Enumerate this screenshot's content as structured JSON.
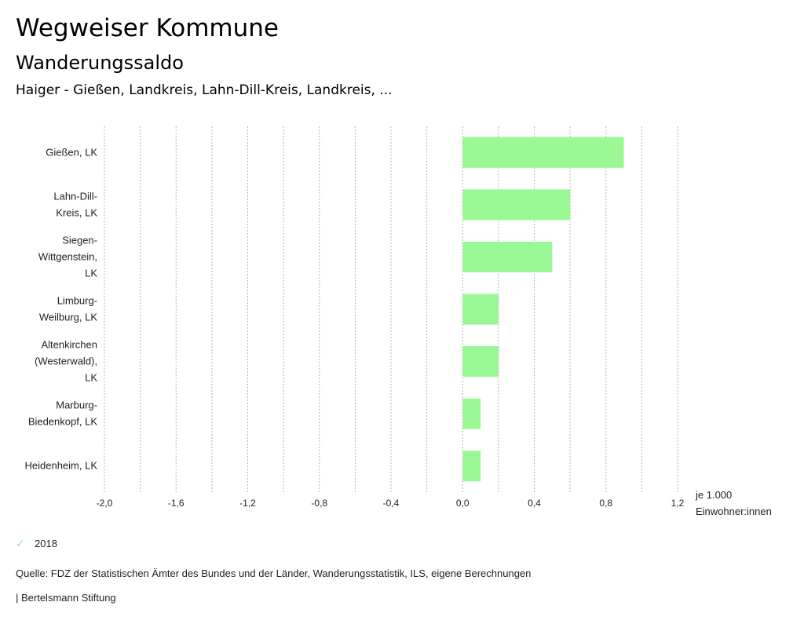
{
  "header": {
    "title": "Wegweiser Kommune",
    "subtitle": "Wanderungssaldo",
    "regions": "Haiger - Gießen, Landkreis, Lahn-Dill-Kreis, Landkreis, ..."
  },
  "chart_data": {
    "type": "bar",
    "orientation": "horizontal",
    "categories": [
      [
        "Gießen, LK"
      ],
      [
        "Lahn-Dill-",
        "Kreis, LK"
      ],
      [
        "Siegen-",
        "Wittgenstein,",
        "LK"
      ],
      [
        "Limburg-",
        "Weilburg, LK"
      ],
      [
        "Altenkirchen",
        "(Westerwald),",
        "LK"
      ],
      [
        "Marburg-",
        "Biedenkopf, LK"
      ],
      [
        "Heidenheim, LK"
      ]
    ],
    "series": [
      {
        "name": "2018",
        "color": "#9af894",
        "values": [
          0.9,
          0.6,
          0.5,
          0.2,
          0.2,
          0.1,
          0.1
        ]
      }
    ],
    "xlim": [
      -2.0,
      1.2
    ],
    "xticks": [
      -2.0,
      -1.6,
      -1.2,
      -0.8,
      -0.4,
      0.0,
      0.4,
      0.8,
      1.2
    ],
    "xtick_labels": [
      "-2,0",
      "-1,6",
      "-1,2",
      "-0,8",
      "-0,4",
      "0,0",
      "0,4",
      "0,8",
      "1,2"
    ],
    "minor_gridlines": [
      -1.8,
      -1.4,
      -1.0,
      -0.6,
      -0.2,
      0.2,
      0.6,
      1.0
    ],
    "unit_label": [
      "je 1.000",
      "Einwohner:innen"
    ],
    "grid": true,
    "grid_style": "dotted-vertical",
    "legend_position": "bottom-left"
  },
  "legend": {
    "items": [
      {
        "label": "2018",
        "checked": true,
        "icon": "check-icon"
      }
    ]
  },
  "footer": {
    "source": "Quelle: FDZ der Statistischen Ämter des Bundes und der Länder, Wanderungsstatistik, ILS, eigene Berechnungen",
    "credit": "| Bertelsmann Stiftung"
  }
}
